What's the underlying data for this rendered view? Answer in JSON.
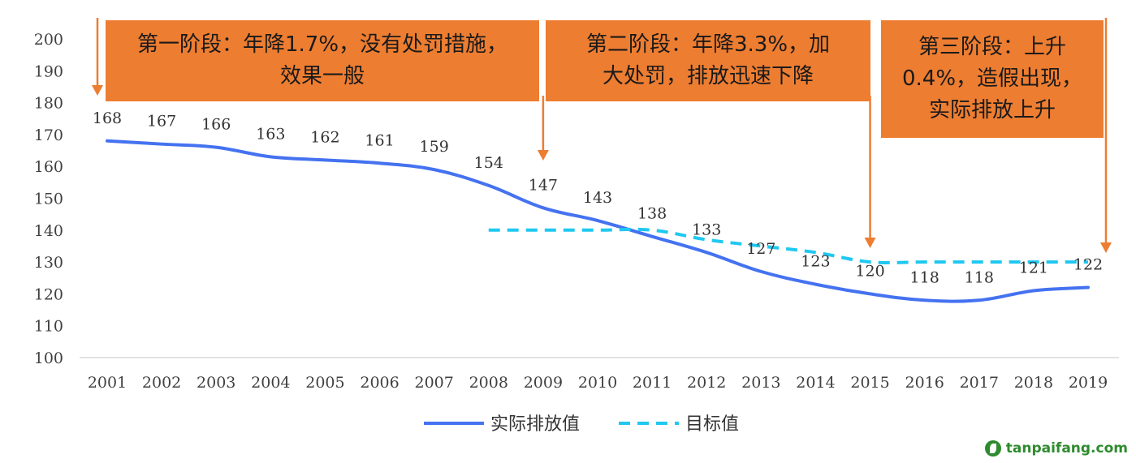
{
  "chart_data": {
    "type": "line",
    "x": [
      "2001",
      "2002",
      "2003",
      "2004",
      "2005",
      "2006",
      "2007",
      "2008",
      "2009",
      "2010",
      "2011",
      "2012",
      "2013",
      "2014",
      "2015",
      "2016",
      "2017",
      "2018",
      "2019"
    ],
    "ylim": [
      100,
      200
    ],
    "yticks": [
      100,
      110,
      120,
      130,
      140,
      150,
      160,
      170,
      180,
      190,
      200
    ],
    "grid": false,
    "legend_position": "bottom",
    "series": [
      {
        "name": "实际排放值",
        "color": "#4472F0",
        "style": "solid",
        "values": [
          168,
          167,
          166,
          163,
          162,
          161,
          159,
          154,
          147,
          143,
          138,
          133,
          127,
          123,
          120,
          118,
          118,
          121,
          122
        ],
        "labels": [
          "168",
          "167",
          "166",
          "163",
          "162",
          "161",
          "159",
          "154",
          "147",
          "143",
          "138",
          "133",
          "127",
          "123",
          "120",
          "118",
          "118",
          "121",
          "122"
        ]
      },
      {
        "name": "目标值",
        "color": "#1FC8F0",
        "style": "dashed",
        "x": [
          "2008",
          "2009",
          "2010",
          "2011",
          "2012",
          "2013",
          "2014",
          "2015",
          "2016",
          "2017",
          "2018",
          "2019"
        ],
        "values": [
          140,
          140,
          140,
          140,
          137,
          135,
          133,
          130,
          130,
          130,
          130,
          130
        ]
      }
    ],
    "annotations": [
      {
        "lines": [
          "第一阶段：年降1.7%，没有处罚措施，",
          "效果一般"
        ],
        "arrow_at": "2001"
      },
      {
        "lines": [
          "第二阶段：年降3.3%，加",
          "大处罚，排放迅速下降"
        ],
        "arrow_at": "2009"
      },
      {
        "lines": [
          "第三阶段：上升",
          "0.4%，造假出现，",
          "实际排放上升"
        ],
        "arrow_at": "2015"
      }
    ],
    "annotation_arrow_end": "2019",
    "annotation_color": "#ED7D31"
  },
  "watermark": {
    "text": "tanpaifang.com",
    "icon": "leaf-logo-icon"
  }
}
